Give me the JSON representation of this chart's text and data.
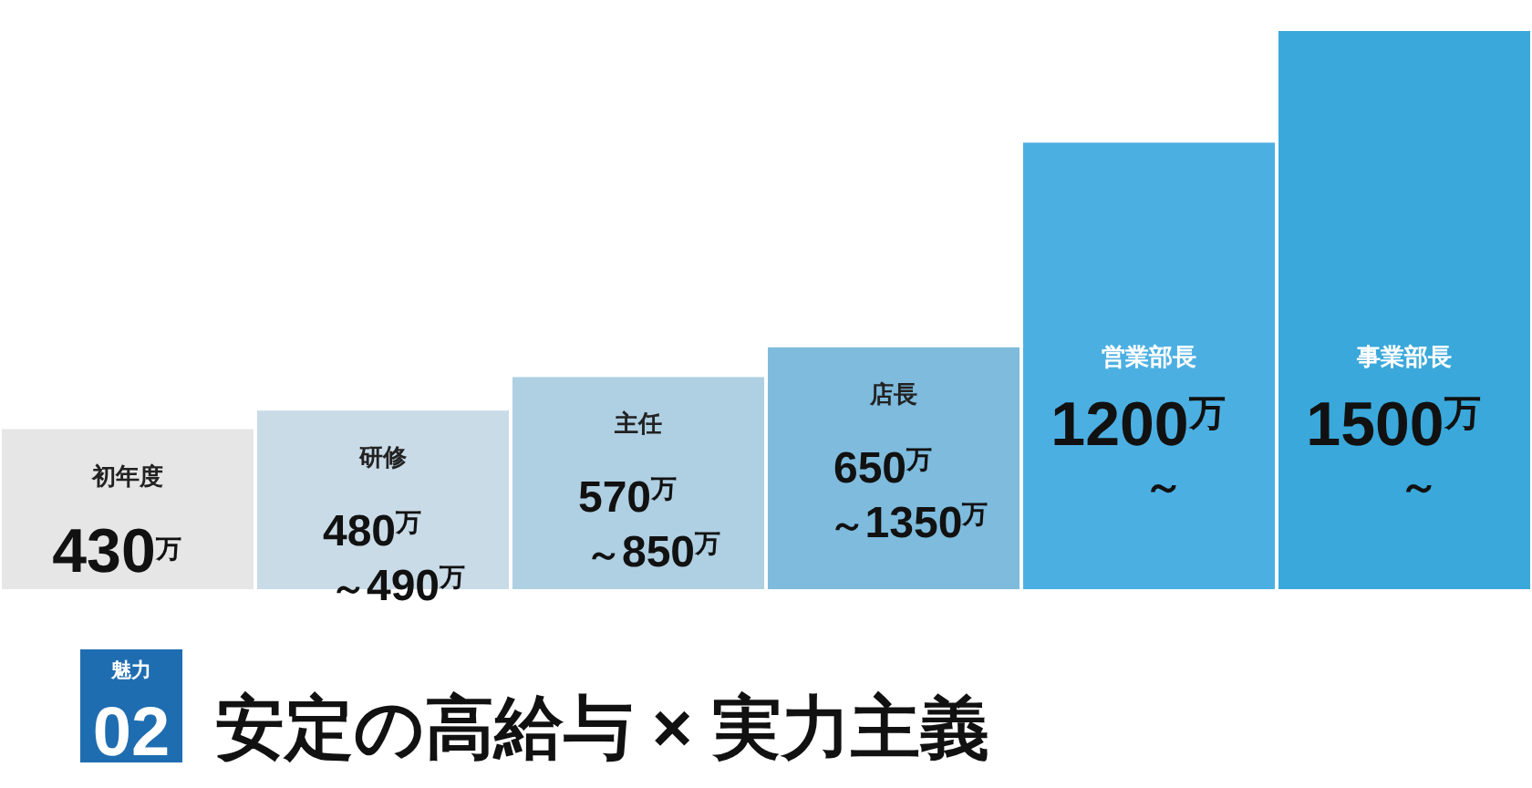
{
  "chart_data": {
    "type": "bar",
    "title": "安定の高給与 × 実力主義",
    "annotations": [
      "魅力",
      "02"
    ],
    "categories": [
      "初年度",
      "研修",
      "主任",
      "店長",
      "営業部長",
      "事業部長"
    ],
    "values": [
      430,
      480,
      570,
      650,
      1200,
      1500
    ],
    "colors": [
      "#e6e6e6",
      "#c9dbe7",
      "#afcfe2",
      "#7ebbdd",
      "#4cafe2",
      "#3aa8da"
    ],
    "value_labels": [
      "430$^{万}$",
      "480$^{万}$～490$^{万}$",
      "570$^{万}$～850$^{万}$",
      "650$^{万}$～1350$^{万}$",
      "1200$^{万}$～",
      "1500$^{万}$～"
    ]
  }
}
